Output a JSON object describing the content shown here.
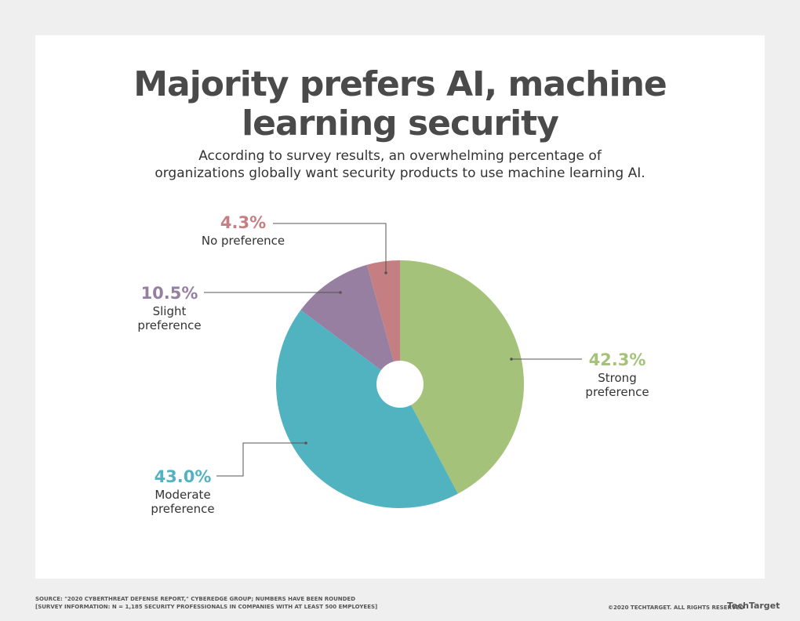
{
  "chart_data": {
    "type": "pie",
    "title": "Majority prefers AI, machine learning security",
    "subtitle": "According to survey results, an overwhelming percentage of organizations globally want security products to use machine learning AI.",
    "categories": [
      "Strong preference",
      "Moderate preference",
      "Slight preference",
      "No preference"
    ],
    "values": [
      42.3,
      43.0,
      10.5,
      4.3
    ],
    "value_labels": [
      "42.3%",
      "43.0%",
      "10.5%",
      "4.3%"
    ],
    "colors": [
      "#a5c27a",
      "#52b3c0",
      "#967fa0",
      "#c57f83"
    ]
  },
  "footer": {
    "source": "SOURCE: \"2020 CYBERTHREAT DEFENSE REPORT,\" CYBEREDGE GROUP; NUMBERS HAVE BEEN ROUNDED",
    "survey": "[SURVEY INFORMATION: N = 1,185 SECURITY PROFESSIONALS IN COMPANIES WITH AT LEAST 500 EMPLOYEES]",
    "copyright": "©2020 TECHTARGET. ALL RIGHTS RESERVED",
    "logo": "TechTarget"
  }
}
